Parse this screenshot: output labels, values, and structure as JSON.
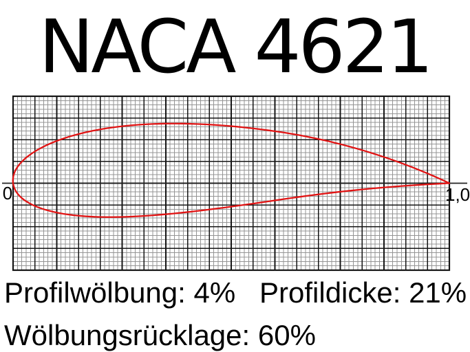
{
  "title": "NACA 4621",
  "axis": {
    "origin_label": "0",
    "end_label": "1,0"
  },
  "stats": {
    "camber": "Profilwölbung: 4%",
    "thickness": "Profildicke: 21%",
    "camber_position": "Wölbungsrücklage: 60%"
  },
  "chart_data": {
    "type": "line",
    "title": "NACA 4621",
    "series": [
      {
        "name": "airfoil-outline",
        "color": "#e11414"
      }
    ],
    "airfoil": {
      "designation": "NACA 4621",
      "camber": 0.04,
      "camber_percent": 4,
      "camber_position": 0.6,
      "camber_position_percent": 60,
      "thickness": 0.21,
      "thickness_percent": 21
    },
    "x_range": [
      0,
      1
    ],
    "y_range": [
      -0.2,
      0.2
    ],
    "x_tick_labels": [
      "0",
      "1,0"
    ],
    "grid": {
      "on": true,
      "minor_step": 0.01,
      "major_step": 0.05,
      "minor_color": "#949494",
      "major_color": "#151515"
    },
    "axis_color": "#222222",
    "curve_color": "#e11414",
    "legend": "none"
  }
}
